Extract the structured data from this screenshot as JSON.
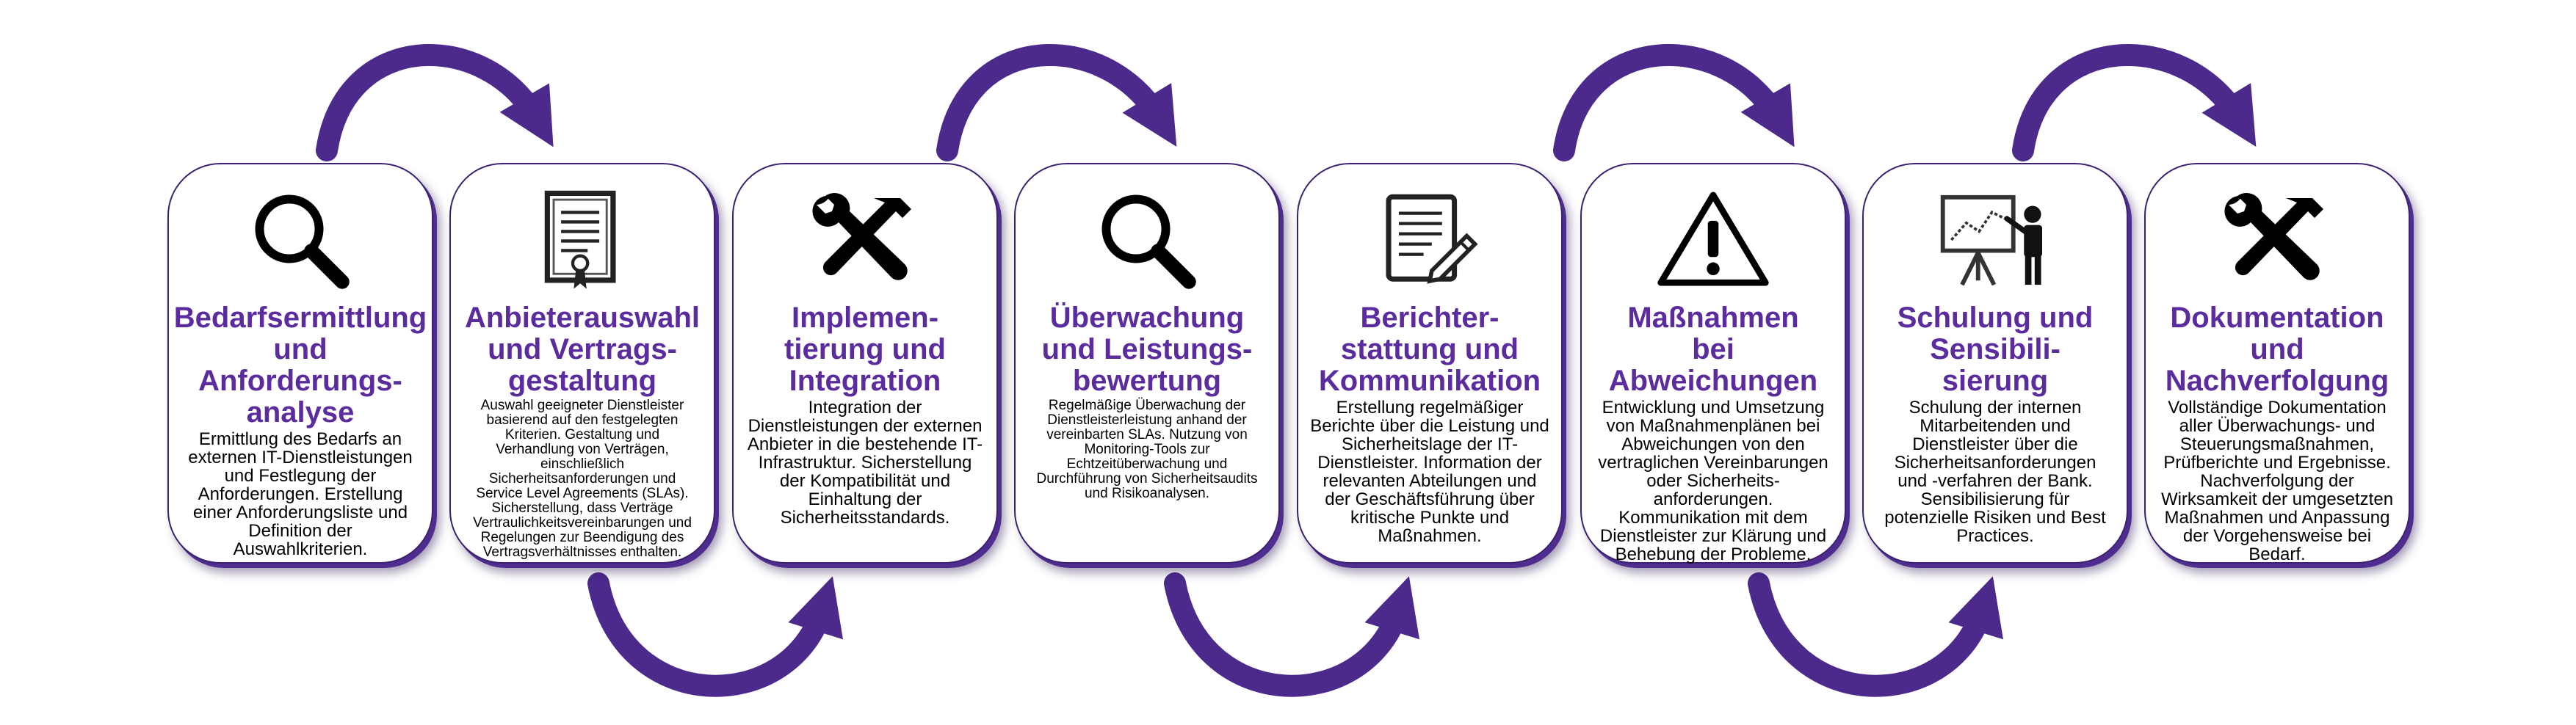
{
  "colors": {
    "accent": "#5b2c9d",
    "arrow": "#4b2a8c",
    "border": "#3c2170",
    "text": "#000000"
  },
  "steps": [
    {
      "icon": "magnifier-icon",
      "title": "Bedarfsermittlung\nund\nAnforderungs-\nanalyse",
      "description": "Ermittlung des Bedarfs an\nexternen IT-Dienstleistungen\nund Festlegung der\nAnforderungen. Erstellung\neiner Anforderungsliste und\nDefinition der\nAuswahlkriterien."
    },
    {
      "icon": "contract-document-icon",
      "title": "Anbieterauswahl\nund Vertrags-\ngestaltung",
      "description": "Auswahl geeigneter Dienstleister\nbasierend auf den festgelegten\nKriterien. Gestaltung und\nVerhandlung von Verträgen,\neinschließlich\nSicherheitsanforderungen und\nService Level Agreements (SLAs).\nSicherstellung, dass Verträge\nVertraulichkeitsvereinbarungen und\nRegelungen zur Beendigung des\nVertragsverhältnisses enthalten."
    },
    {
      "icon": "tools-icon",
      "title": "Implemen-\ntierung und\nIntegration",
      "description": "Integration der\nDienstleistungen der externen\nAnbieter in die bestehende IT-\nInfrastruktur. Sicherstellung\nder Kompatibilität und\nEinhaltung der\nSicherheitsstandards."
    },
    {
      "icon": "magnifier-icon",
      "title": "Überwachung\nund Leistungs-\nbewertung",
      "description": "Regelmäßige Überwachung der\nDienstleisterleistung anhand der\nvereinbarten SLAs. Nutzung von\nMonitoring-Tools zur\nEchtzeitüberwachung und\nDurchführung von Sicherheitsaudits\nund Risikoanalysen."
    },
    {
      "icon": "report-edit-icon",
      "title": "Berichter-\nstattung und\nKommunikation",
      "description": "Erstellung regelmäßiger\nBerichte über die Leistung und\nSicherheitslage der IT-\nDienstleister. Information der\nrelevanten Abteilungen und\nder Geschäftsführung über\nkritische Punkte und\nMaßnahmen."
    },
    {
      "icon": "warning-icon",
      "title": "Maßnahmen\nbei\nAbweichungen",
      "description": "Entwicklung und Umsetzung\nvon Maßnahmenplänen bei\nAbweichungen von den\nvertraglichen Vereinbarungen\noder Sicherheits-\nanforderungen.\nKommunikation mit dem\nDienstleister zur Klärung und\nBehebung der Probleme."
    },
    {
      "icon": "presentation-icon",
      "title": "Schulung und\nSensibili-\nsierung",
      "description": "Schulung der internen\nMitarbeitenden und\nDienstleister über die\nSicherheitsanforderungen\nund -verfahren der Bank.\nSensibilisierung für\npotenzielle Risiken und Best\nPractices."
    },
    {
      "icon": "tools-icon",
      "title": "Dokumentation\nund\nNachverfolgung",
      "description": "Vollständige Dokumentation\naller Überwachungs- und\nSteuerungsmaßnahmen,\nPrüfberichte und Ergebnisse.\nNachverfolgung der\nWirksamkeit der umgesetzten\nMaßnahmen und Anpassung\nder Vorgehensweise bei\nBedarf."
    }
  ]
}
